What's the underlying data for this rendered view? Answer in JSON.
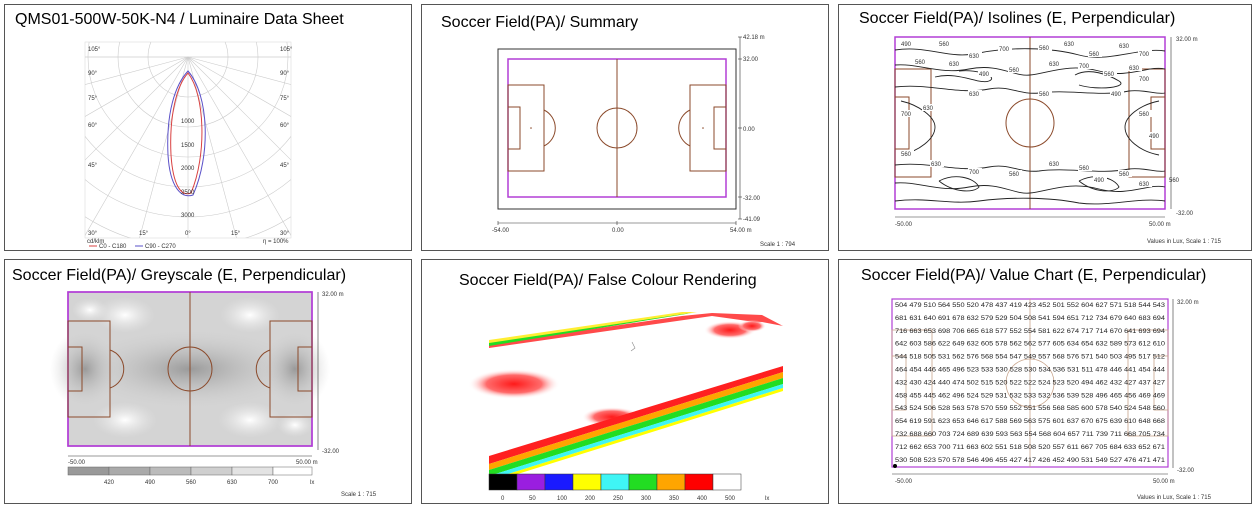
{
  "panel1": {
    "title": "QMS01-500W-50K-N4 / Luminaire Data Sheet",
    "angle_labels_left": [
      "105°",
      "90°",
      "75°",
      "60°",
      "45°",
      "30°"
    ],
    "angle_labels_right": [
      "105°",
      "90°",
      "75°",
      "60°",
      "45°",
      "30°"
    ],
    "bottom_angles": [
      "30°",
      "15°",
      "0°",
      "15°",
      "30°"
    ],
    "radial_values": [
      "1000",
      "1500",
      "2000",
      "2500",
      "3000"
    ],
    "unit": "cd/klm",
    "efficiency": "η = 100%",
    "legend": [
      {
        "label": "C0 - C180",
        "color": "#d94040"
      },
      {
        "label": "C90 - C270",
        "color": "#5a50c8"
      }
    ]
  },
  "panel2": {
    "title": "Soccer Field(PA)/ Summary",
    "right_labels": [
      "42.18 m",
      "32.00",
      "0.00",
      "-32.00",
      "-41.09"
    ],
    "bottom_labels": [
      "-54.00",
      "0.00",
      "54.00 m"
    ],
    "scale": "Scale 1 : 794"
  },
  "panel3": {
    "title": "Soccer Field(PA)/ Isolines (E, Perpendicular)",
    "right_labels": [
      "32.00 m",
      "-32.00"
    ],
    "bottom_labels": [
      "-50.00",
      "50.00 m"
    ],
    "footer": "Values in Lux, Scale 1 : 715",
    "iso_labels": [
      "490",
      "560",
      "630",
      "700",
      "560",
      "630",
      "560",
      "630",
      "700",
      "560",
      "630",
      "490",
      "560",
      "630",
      "700",
      "560",
      "630",
      "700",
      "630",
      "560",
      "490",
      "700",
      "630",
      "560",
      "490",
      "560",
      "630",
      "700",
      "560",
      "630",
      "560",
      "490",
      "560",
      "630",
      "560"
    ]
  },
  "panel4": {
    "title": "Soccer Field(PA)/ Greyscale (E, Perpendicular)",
    "right_labels": [
      "32.00 m",
      "-32.00"
    ],
    "bottom_labels": [
      "-50.00",
      "50.00 m"
    ],
    "legend_values": [
      "420",
      "490",
      "560",
      "630",
      "700",
      "lx"
    ],
    "scale": "Scale 1 : 715"
  },
  "panel5": {
    "title": "Soccer Field(PA)/ False Colour Rendering",
    "legend_values": [
      "0",
      "50",
      "100",
      "200",
      "250",
      "300",
      "350",
      "400",
      "500",
      "lx"
    ],
    "legend_colors": [
      "#000000",
      "#9a1ee0",
      "#1a1aff",
      "#ffff00",
      "#3ff5f5",
      "#22dd22",
      "#ffa500",
      "#ff0000",
      "#ffffff"
    ]
  },
  "panel6": {
    "title": "Soccer Field(PA)/ Value Chart (E, Perpendicular)",
    "right_labels": [
      "32.00 m",
      "-32.00"
    ],
    "bottom_labels": [
      "-50.00",
      "50.00 m"
    ],
    "footer": "Values in Lux, Scale 1 : 715",
    "rows": [
      "504 479 510 564 550 520 478 437 419 423 452 501 552 604 627 571 518 544 543",
      "681 631 640 691 678 632 579 529 504 508 541 594 651 712 734 679 640 683 694",
      "716 663 653 698 706 665 618 577 552 554 581 622 674 717 714 670 641 693 694",
      "642 603 586 622 649 632 605 578 562 562 577 605 634 654 632 589 573 612 610",
      "544 518 505 531 562 576 568 554 547 549 557 568 576 571 540 503 495 517 512",
      "464 454 446 465 496 523 533 530 528 530 534 536 531 511 478 446 441 454 444",
      "432 430 424 440 474 502 515 520 522 522 524 523 520 494 462 432 427 437 427",
      "458 455 445 462 496 524 529 531 532 533 532 536 539 528 496 465 456 469 469",
      "543 524 506 528 563 578 570 559 552 551 556 568 585 600 578 540 524 548 560",
      "654 619 591 623 653 646 617 588 569 563 575 601 637 670 675 639 610 648 668",
      "732 688 660 703 724 689 639 593 563 554 568 604 657 711 739 711 668 705 734",
      "712 662 653 700 711 663 602 551 518 508 520 557 611 667 705 684 633 652 671",
      "530 508 523 570 578 546 496 455 427 417 426 452 490 531 549 527 476 471 471"
    ]
  }
}
